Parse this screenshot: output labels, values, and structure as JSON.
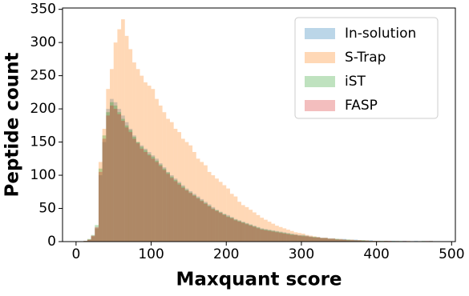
{
  "chart_data": {
    "type": "histogram",
    "xlabel": "Maxquant score",
    "ylabel": "Peptide count",
    "bins": [
      0,
      5,
      10,
      15,
      20,
      25,
      30,
      35,
      40,
      45,
      50,
      55,
      60,
      65,
      70,
      75,
      80,
      85,
      90,
      95,
      100,
      105,
      110,
      115,
      120,
      125,
      130,
      135,
      140,
      145,
      150,
      155,
      160,
      165,
      170,
      175,
      180,
      185,
      190,
      195,
      200,
      205,
      210,
      215,
      220,
      225,
      230,
      235,
      240,
      245,
      250,
      255,
      260,
      265,
      270,
      275,
      280,
      285,
      290,
      295,
      300,
      305,
      310,
      315,
      320,
      325,
      330,
      335,
      340,
      345,
      350,
      355,
      360,
      365,
      370,
      375,
      380,
      385,
      390,
      395,
      400,
      405,
      410,
      415,
      420,
      425,
      430,
      435,
      440,
      445,
      450,
      455,
      460,
      465,
      470,
      475,
      480
    ],
    "alpha": 0.3,
    "series": [
      {
        "name": "In-solution",
        "color": "#1f77b4",
        "values": [
          0,
          0,
          1,
          3,
          8,
          20,
          100,
          150,
          200,
          215,
          210,
          200,
          190,
          180,
          170,
          160,
          150,
          145,
          140,
          135,
          130,
          125,
          118,
          112,
          105,
          100,
          95,
          90,
          85,
          80,
          76,
          72,
          68,
          64,
          60,
          56,
          52,
          48,
          45,
          42,
          40,
          37,
          34,
          32,
          30,
          28,
          26,
          24,
          22,
          20,
          19,
          18,
          17,
          16,
          15,
          14,
          13,
          12,
          11,
          10,
          10,
          9,
          8,
          7,
          7,
          6,
          6,
          5,
          5,
          4,
          4,
          4,
          3,
          3,
          3,
          2,
          2,
          2,
          2,
          1,
          1,
          1,
          1,
          1,
          1,
          1,
          0,
          1,
          0,
          0,
          1,
          0,
          0,
          0,
          1,
          0
        ]
      },
      {
        "name": "S-Trap",
        "color": "#ff7f0e",
        "values": [
          0,
          0,
          1,
          3,
          8,
          20,
          120,
          170,
          230,
          260,
          300,
          320,
          335,
          310,
          290,
          270,
          260,
          250,
          240,
          235,
          230,
          215,
          205,
          195,
          185,
          180,
          170,
          165,
          155,
          150,
          145,
          135,
          125,
          120,
          115,
          105,
          100,
          95,
          90,
          85,
          80,
          72,
          68,
          60,
          55,
          52,
          48,
          44,
          40,
          36,
          33,
          30,
          27,
          24,
          22,
          20,
          18,
          16,
          14,
          13,
          12,
          10,
          9,
          8,
          7,
          6,
          6,
          5,
          5,
          4,
          4,
          3,
          3,
          3,
          2,
          2,
          2,
          2,
          1,
          1,
          1,
          1,
          1,
          1,
          0,
          1,
          0,
          0,
          1,
          0,
          0,
          0,
          0,
          0,
          1,
          0
        ]
      },
      {
        "name": "iST",
        "color": "#2ca02c",
        "values": [
          0,
          0,
          1,
          4,
          10,
          25,
          110,
          160,
          195,
          210,
          205,
          195,
          185,
          175,
          168,
          158,
          150,
          143,
          138,
          132,
          128,
          122,
          116,
          110,
          104,
          98,
          93,
          88,
          83,
          78,
          74,
          70,
          66,
          62,
          58,
          54,
          50,
          47,
          44,
          41,
          38,
          36,
          33,
          31,
          29,
          27,
          25,
          23,
          21,
          19,
          18,
          17,
          16,
          15,
          14,
          13,
          12,
          11,
          10,
          9,
          9,
          8,
          7,
          7,
          6,
          5,
          5,
          4,
          4,
          4,
          3,
          3,
          3,
          2,
          2,
          2,
          2,
          1,
          1,
          1,
          1,
          1,
          1,
          0,
          1,
          0,
          1,
          0,
          0,
          0,
          0,
          0,
          1,
          0,
          0,
          0
        ]
      },
      {
        "name": "FASP",
        "color": "#d62728",
        "values": [
          0,
          0,
          1,
          3,
          9,
          22,
          105,
          155,
          190,
          205,
          200,
          192,
          182,
          172,
          165,
          155,
          148,
          140,
          135,
          130,
          125,
          120,
          114,
          108,
          102,
          96,
          91,
          86,
          81,
          77,
          73,
          69,
          65,
          61,
          57,
          53,
          49,
          46,
          43,
          40,
          37,
          35,
          32,
          30,
          28,
          26,
          24,
          22,
          20,
          18,
          17,
          16,
          15,
          14,
          13,
          12,
          11,
          10,
          10,
          9,
          8,
          8,
          7,
          6,
          6,
          5,
          5,
          4,
          4,
          3,
          3,
          3,
          2,
          2,
          2,
          2,
          1,
          1,
          1,
          1,
          1,
          0,
          1,
          1,
          0,
          0,
          0,
          1,
          0,
          0,
          0,
          0,
          0,
          1,
          0,
          0
        ]
      }
    ],
    "xlim": [
      -18,
      505
    ],
    "ylim": [
      0,
      352
    ],
    "xticks": [
      0,
      100,
      200,
      300,
      400,
      500
    ],
    "yticks": [
      0,
      50,
      100,
      150,
      200,
      250,
      300,
      350
    ],
    "legend": "upper right"
  }
}
